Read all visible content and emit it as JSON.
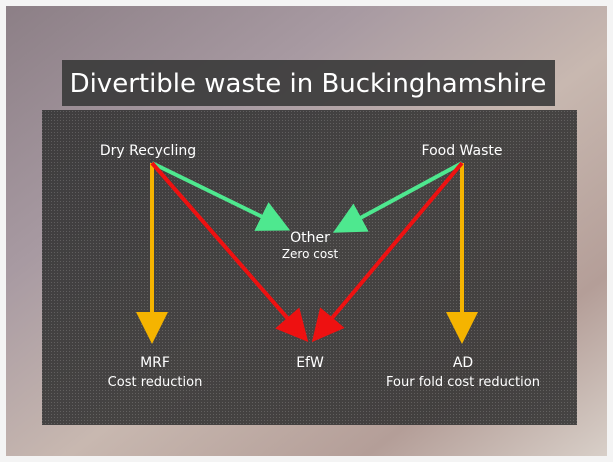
{
  "title": "Divertible waste in Buckinghamshire",
  "nodes": [
    {
      "label": "Dry Recycling"
    },
    {
      "label": "Food Waste"
    },
    {
      "label": "Other",
      "sublabel": "Zero cost"
    },
    {
      "label": "MRF",
      "sublabel": "Cost reduction"
    },
    {
      "label": "EfW"
    },
    {
      "label": "AD",
      "sublabel": "Four fold cost reduction"
    }
  ]
}
